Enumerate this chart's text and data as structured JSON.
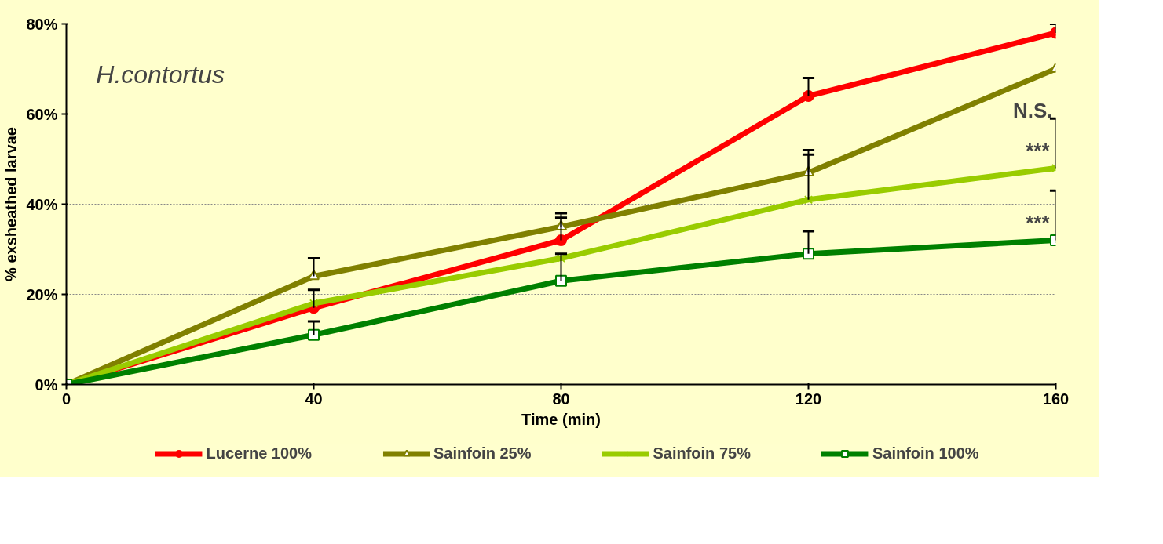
{
  "chart_data": {
    "type": "line",
    "x": [
      0,
      40,
      80,
      120,
      160
    ],
    "xlabel": "Time (min)",
    "ylabel": "% exsheathed larvae",
    "xlim": [
      0,
      160
    ],
    "xticks": [
      0,
      40,
      80,
      120,
      160
    ],
    "ylim": [
      0,
      80
    ],
    "yticks": [
      {
        "value": 0,
        "label": "0%"
      },
      {
        "value": 20,
        "label": "20%"
      },
      {
        "value": 40,
        "label": "40%"
      },
      {
        "value": 60,
        "label": "60%"
      },
      {
        "value": 80,
        "label": "80%"
      }
    ],
    "grid": "y",
    "legend": "bottom",
    "line_style": "solid",
    "series": [
      {
        "name": "Lucerne 100%",
        "color": "#ff0000",
        "marker": "circle",
        "values": [
          0,
          17,
          32,
          64,
          78
        ],
        "errors": [
          null,
          [
            17,
            21
          ],
          [
            32,
            38
          ],
          [
            64,
            68
          ],
          [
            78,
            80
          ]
        ]
      },
      {
        "name": "Sainfoin 25%",
        "color": "#808000",
        "marker": "triangle",
        "values": [
          0,
          24,
          35,
          47,
          70
        ],
        "errors": [
          null,
          [
            24,
            28
          ],
          [
            35,
            37
          ],
          [
            47,
            52
          ],
          null
        ]
      },
      {
        "name": "Sainfoin 75%",
        "color": "#99cc00",
        "marker": "cross",
        "values": [
          0,
          18,
          28,
          41,
          48
        ],
        "errors": [
          null,
          null,
          null,
          [
            41,
            51
          ],
          [
            48,
            59
          ]
        ]
      },
      {
        "name": "Sainfoin 100%",
        "color": "#008000",
        "marker": "square",
        "values": [
          0,
          11,
          23,
          29,
          32
        ],
        "errors": [
          null,
          [
            11,
            14
          ],
          [
            23,
            29
          ],
          [
            29,
            34
          ],
          [
            32,
            43
          ]
        ]
      }
    ],
    "annotations": [
      "H.contortus",
      "N.S.",
      {
        "text": "***",
        "x": 160,
        "y": 48
      },
      {
        "text": "***",
        "x": 160,
        "y": 32
      }
    ]
  }
}
